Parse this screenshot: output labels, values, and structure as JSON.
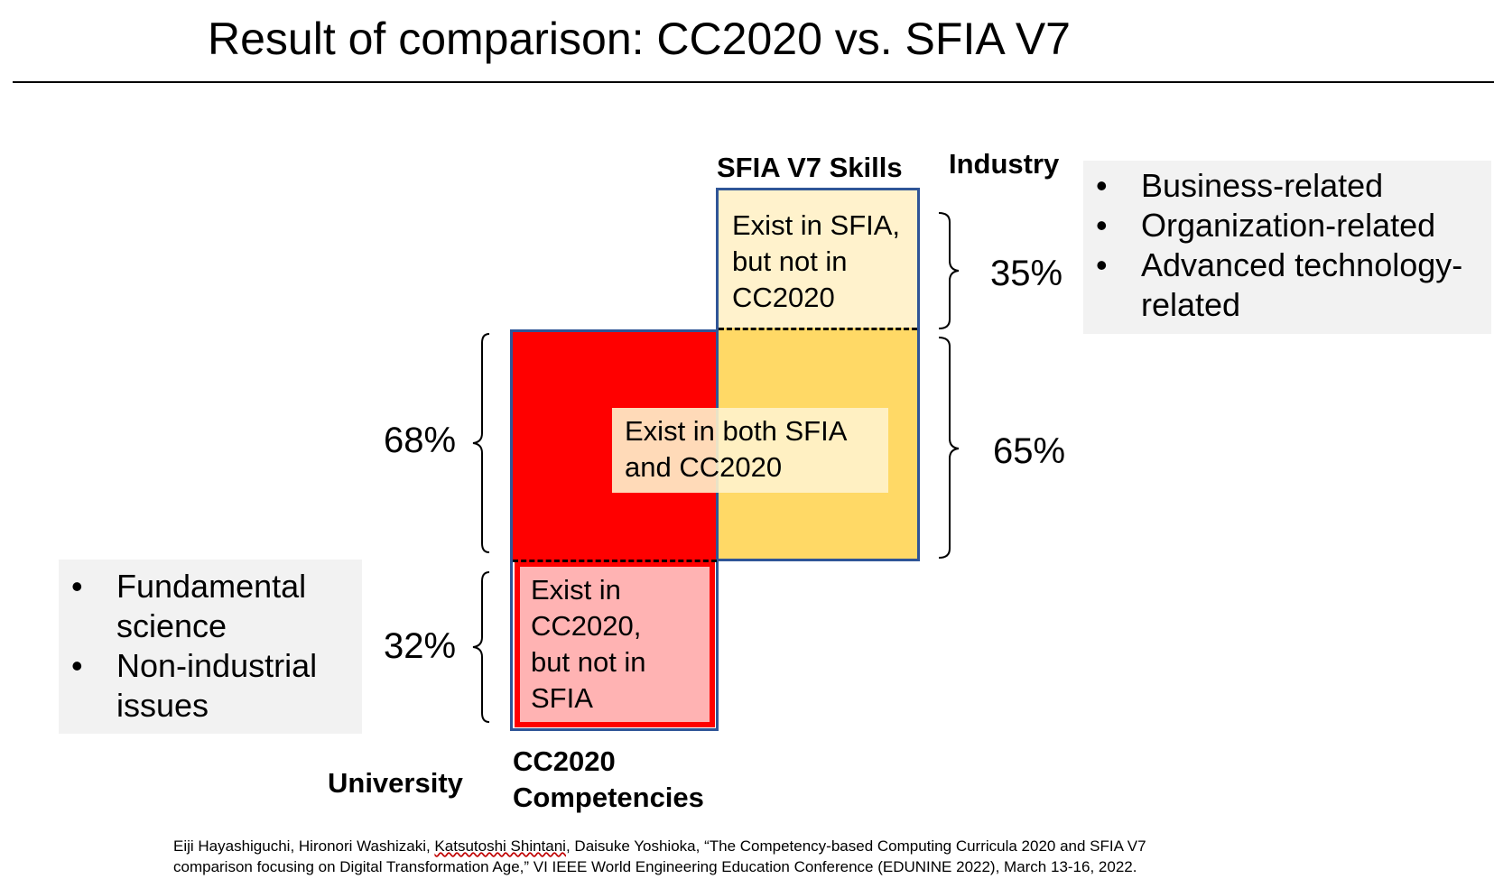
{
  "title": "Result of comparison: CC2020 vs. SFIA V7",
  "labels": {
    "sfia_skills": "SFIA V7 Skills",
    "industry": "Industry",
    "university": "University",
    "cc2020_line1": "CC2020",
    "cc2020_line2": "Competencies"
  },
  "regions": {
    "sfia_only": [
      "Exist in SFIA,",
      "but not in",
      "CC2020"
    ],
    "both": [
      "Exist in both SFIA",
      "and CC2020"
    ],
    "cc_only": [
      "Exist in",
      "CC2020,",
      "but not in",
      "SFIA"
    ]
  },
  "percentages": {
    "cc_shared": "68%",
    "cc_only": "32%",
    "sfia_only": "35%",
    "sfia_shared": "65%"
  },
  "industry_items": [
    "Business-related",
    "Organization-related",
    "Advanced technology-",
    "related"
  ],
  "university_items": [
    "Fundamental",
    "science",
    "Non-industrial",
    "issues"
  ],
  "citation": {
    "line1_prefix": "Eiji Hayashiguchi, Hironori Washizaki, ",
    "line1_underlined": "Katsutoshi Shintani",
    "line1_suffix": ", Daisuke Yoshioka, “The Competency-based Computing Curricula 2020 and SFIA V7",
    "line2": "comparison focusing on Digital Transformation Age,” VI IEEE World Engineering Education Conference (EDUNINE 2022), March 13-16, 2022."
  },
  "colors": {
    "border": "#2f5597",
    "cc_red": "#ff0000",
    "cc_pink": "#ffb3b3",
    "sfia_yellow": "#ffd966",
    "sfia_light": "#fff2cc",
    "panel_grey": "#f2f2f2"
  }
}
